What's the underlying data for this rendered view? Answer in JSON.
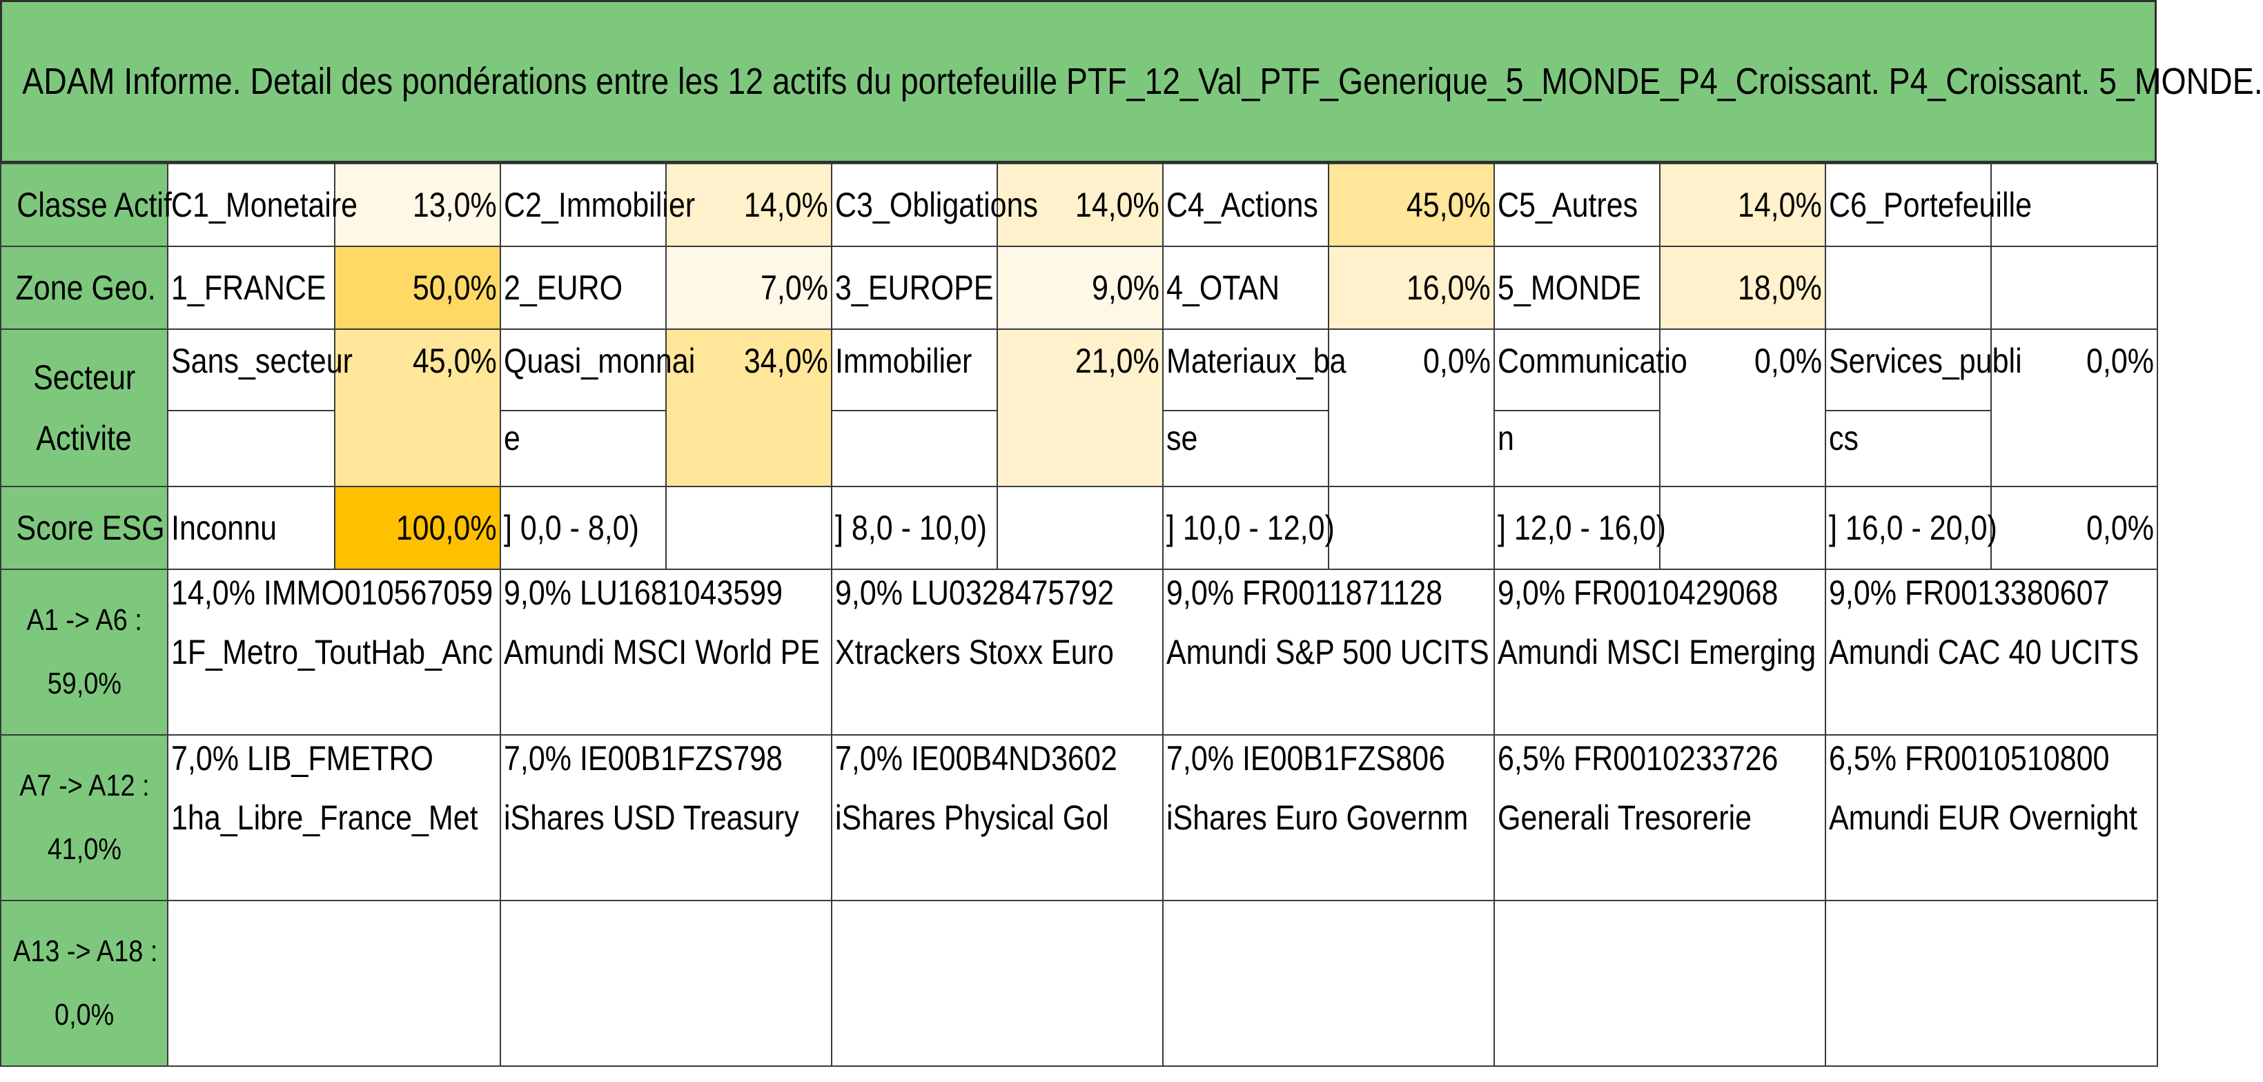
{
  "title": "ADAM Informe. Detail des pondérations entre les 12 actifs du portefeuille PTF_12_Val_PTF_Generique_5_MONDE_P4_Croissant. P4_Croissant. 5_MONDE.",
  "colors": {
    "header_green": "#7ec87e",
    "heat_very_light": "#fff8e6",
    "heat_light": "#fff1cc",
    "heat_medium": "#ffe699",
    "heat_strong": "#ffd966",
    "heat_max": "#ffc000"
  },
  "classe_actif": {
    "label": "Classe Actif",
    "items": [
      {
        "name": "C1_Monetaire",
        "pct": "13,0%",
        "heat": "#fff8e6"
      },
      {
        "name": "C2_Immobilier",
        "pct": "14,0%",
        "heat": "#fff1cc"
      },
      {
        "name": "C3_Obligations",
        "pct": "14,0%",
        "heat": "#fff1cc"
      },
      {
        "name": "C4_Actions",
        "pct": "45,0%",
        "heat": "#ffe699"
      },
      {
        "name": "C5_Autres",
        "pct": "14,0%",
        "heat": "#fff1cc"
      },
      {
        "name": "C6_Portefeuille",
        "pct": "",
        "heat": "#ffffff"
      }
    ]
  },
  "zone_geo": {
    "label": "Zone Geo.",
    "items": [
      {
        "name": "1_FRANCE",
        "pct": "50,0%",
        "heat": "#ffd966"
      },
      {
        "name": "2_EURO",
        "pct": "7,0%",
        "heat": "#fff8e6"
      },
      {
        "name": "3_EUROPE",
        "pct": "9,0%",
        "heat": "#fff8e6"
      },
      {
        "name": "4_OTAN",
        "pct": "16,0%",
        "heat": "#fff1cc"
      },
      {
        "name": "5_MONDE",
        "pct": "18,0%",
        "heat": "#fff1cc"
      },
      {
        "name": "",
        "pct": "",
        "heat": "#ffffff"
      }
    ]
  },
  "secteur": {
    "label_line1": "Secteur",
    "label_line2": "Activite",
    "items": [
      {
        "line1": "Sans_secteur",
        "line2": "",
        "pct": "45,0%",
        "heat": "#ffe699"
      },
      {
        "line1": "Quasi_monnai",
        "line2": "e",
        "pct": "34,0%",
        "heat": "#ffe699"
      },
      {
        "line1": "Immobilier",
        "line2": "",
        "pct": "21,0%",
        "heat": "#fff1cc"
      },
      {
        "line1": "Materiaux_ba",
        "line2": "se",
        "pct": "0,0%",
        "heat": "#ffffff"
      },
      {
        "line1": "Communicatio",
        "line2": "n",
        "pct": "0,0%",
        "heat": "#ffffff"
      },
      {
        "line1": "Services_publi",
        "line2": "cs",
        "pct": "0,0%",
        "heat": "#ffffff"
      }
    ]
  },
  "score_esg": {
    "label": "Score ESG",
    "items": [
      {
        "name": "Inconnu",
        "pct": "100,0%",
        "heat": "#ffc000"
      },
      {
        "name": "] 0,0 - 8,0)",
        "pct": "",
        "heat": "#ffffff"
      },
      {
        "name": "] 8,0 - 10,0)",
        "pct": "",
        "heat": "#ffffff"
      },
      {
        "name": "] 10,0 - 12,0)",
        "pct": "",
        "heat": "#ffffff"
      },
      {
        "name": "] 12,0 - 16,0)",
        "pct": "",
        "heat": "#ffffff"
      },
      {
        "name": "] 16,0 - 20,0)",
        "pct": "0,0%",
        "heat": "#ffffff"
      }
    ]
  },
  "assets": [
    {
      "label_line1": "A1 -> A6 :",
      "label_line2": "59,0%",
      "cells": [
        {
          "line1": "14,0% IMMO010567059",
          "line2": "1F_Metro_ToutHab_Anc"
        },
        {
          "line1": "9,0% LU1681043599",
          "line2": "Amundi MSCI World PE"
        },
        {
          "line1": "9,0% LU0328475792",
          "line2": "Xtrackers Stoxx Euro"
        },
        {
          "line1": "9,0% FR0011871128",
          "line2": "Amundi S&P 500 UCITS"
        },
        {
          "line1": "9,0% FR0010429068",
          "line2": "Amundi MSCI Emerging"
        },
        {
          "line1": "9,0% FR0013380607",
          "line2": "Amundi CAC 40 UCITS"
        }
      ]
    },
    {
      "label_line1": "A7 -> A12 :",
      "label_line2": "41,0%",
      "cells": [
        {
          "line1": "7,0% LIB_FMETRO",
          "line2": "1ha_Libre_France_Met"
        },
        {
          "line1": "7,0% IE00B1FZS798",
          "line2": "iShares USD Treasury"
        },
        {
          "line1": "7,0% IE00B4ND3602",
          "line2": "iShares Physical Gol"
        },
        {
          "line1": "7,0% IE00B1FZS806",
          "line2": "iShares Euro Governm"
        },
        {
          "line1": "6,5% FR0010233726",
          "line2": "Generali Tresorerie"
        },
        {
          "line1": "6,5% FR0010510800",
          "line2": "Amundi EUR Overnight"
        }
      ]
    },
    {
      "label_line1": "A13 -> A18 :",
      "label_line2": "0,0%",
      "cells": [
        {
          "line1": "",
          "line2": ""
        },
        {
          "line1": "",
          "line2": ""
        },
        {
          "line1": "",
          "line2": ""
        },
        {
          "line1": "",
          "line2": ""
        },
        {
          "line1": "",
          "line2": ""
        },
        {
          "line1": "",
          "line2": ""
        }
      ]
    }
  ]
}
